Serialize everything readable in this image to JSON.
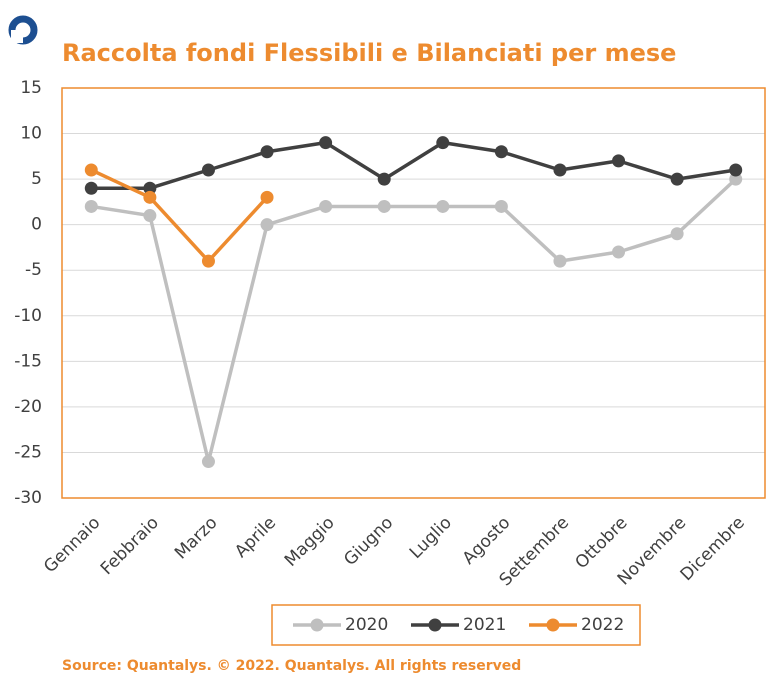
{
  "chart_data": {
    "type": "line",
    "title": "Raccolta fondi Flessibili e Bilanciati per mese",
    "source": "Source: Quantalys. © 2022. Quantalys. All rights reserved",
    "categories": [
      "Gennaio",
      "Febbraio",
      "Marzo",
      "Aprile",
      "Maggio",
      "Giugno",
      "Luglio",
      "Agosto",
      "Settembre",
      "Ottobre",
      "Novembre",
      "Dicembre"
    ],
    "series": [
      {
        "name": "2020",
        "color": "#bfbfbf",
        "values": [
          2,
          1,
          -26,
          0,
          2,
          2,
          2,
          2,
          -4,
          -3,
          -1,
          5
        ]
      },
      {
        "name": "2021",
        "color": "#404040",
        "values": [
          4,
          4,
          6,
          8,
          9,
          5,
          9,
          8,
          6,
          7,
          5,
          6
        ]
      },
      {
        "name": "2022",
        "color": "#ed8b2f",
        "values": [
          6,
          3,
          -4,
          3,
          null,
          null,
          null,
          null,
          null,
          null,
          null,
          null
        ]
      }
    ],
    "ylim": [
      -30,
      15
    ],
    "yticks": [
      -30,
      -25,
      -20,
      -15,
      -10,
      -5,
      0,
      5,
      10,
      15
    ],
    "grid": true,
    "legend": "bottom"
  }
}
